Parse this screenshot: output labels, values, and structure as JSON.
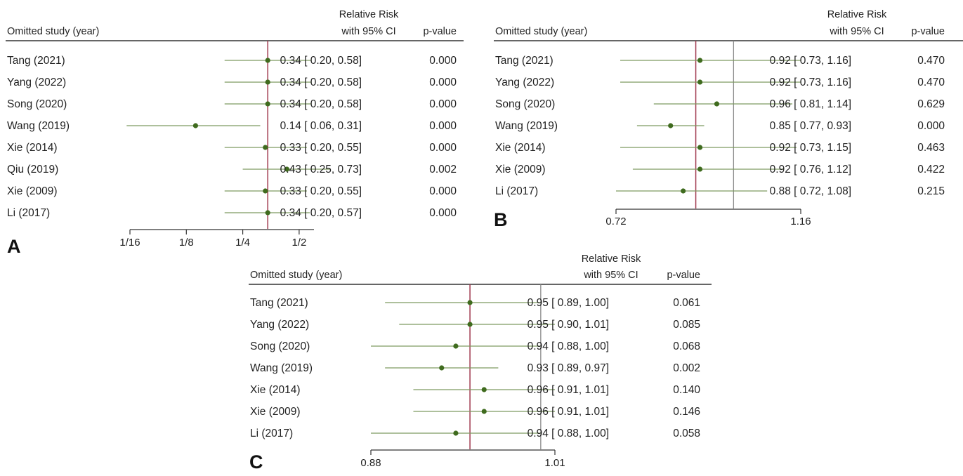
{
  "colors": {
    "ci_line": "#7d9a60",
    "point": "#3f6b1e",
    "null_line": "#a03a4f",
    "ref_line": "#8a8a8a",
    "text": "#222222"
  },
  "chart_data": [
    {
      "type": "forest",
      "panel_label": "A",
      "header": {
        "study": "Omitted study (year)",
        "effect_line1": "Relative Risk",
        "effect_line2": "with 95% CI",
        "pvalue": "p-value"
      },
      "x_scale": "log2",
      "xlim": [
        0.0625,
        0.6
      ],
      "ticks": [
        {
          "value": 0.0625,
          "label": "1/16"
        },
        {
          "value": 0.125,
          "label": "1/8"
        },
        {
          "value": 0.25,
          "label": "1/4"
        },
        {
          "value": 0.5,
          "label": "1/2"
        }
      ],
      "pooled_line": 0.34,
      "reference_line": null,
      "rows": [
        {
          "study": "Tang (2021)",
          "rr": 0.34,
          "lo": 0.2,
          "hi": 0.58,
          "text": "0.34 [ 0.20, 0.58]",
          "p": "0.000"
        },
        {
          "study": "Yang (2022)",
          "rr": 0.34,
          "lo": 0.2,
          "hi": 0.58,
          "text": "0.34 [ 0.20, 0.58]",
          "p": "0.000"
        },
        {
          "study": "Song (2020)",
          "rr": 0.34,
          "lo": 0.2,
          "hi": 0.58,
          "text": "0.34 [ 0.20, 0.58]",
          "p": "0.000"
        },
        {
          "study": "Wang (2019)",
          "rr": 0.14,
          "lo": 0.06,
          "hi": 0.31,
          "text": "0.14 [ 0.06, 0.31]",
          "p": "0.000"
        },
        {
          "study": "Xie (2014)",
          "rr": 0.33,
          "lo": 0.2,
          "hi": 0.55,
          "text": "0.33 [ 0.20, 0.55]",
          "p": "0.000"
        },
        {
          "study": "Qiu (2019)",
          "rr": 0.43,
          "lo": 0.25,
          "hi": 0.73,
          "text": "0.43 [ 0.25, 0.73]",
          "p": "0.002"
        },
        {
          "study": "Xie (2009)",
          "rr": 0.33,
          "lo": 0.2,
          "hi": 0.55,
          "text": "0.33 [ 0.20, 0.55]",
          "p": "0.000"
        },
        {
          "study": "Li (2017)",
          "rr": 0.34,
          "lo": 0.2,
          "hi": 0.57,
          "text": "0.34 [ 0.20, 0.57]",
          "p": "0.000"
        }
      ]
    },
    {
      "type": "forest",
      "panel_label": "B",
      "header": {
        "study": "Omitted study (year)",
        "effect_line1": "Relative Risk",
        "effect_line2": "with 95% CI",
        "pvalue": "p-value"
      },
      "x_scale": "linear",
      "xlim": [
        0.72,
        1.16
      ],
      "ticks": [
        {
          "value": 0.72,
          "label": "0.72"
        },
        {
          "value": 1.16,
          "label": "1.16"
        }
      ],
      "pooled_line": 0.91,
      "reference_line": 1.0,
      "rows": [
        {
          "study": "Tang (2021)",
          "rr": 0.92,
          "lo": 0.73,
          "hi": 1.16,
          "text": "0.92 [ 0.73,  1.16]",
          "p": "0.470"
        },
        {
          "study": "Yang (2022)",
          "rr": 0.92,
          "lo": 0.73,
          "hi": 1.16,
          "text": "0.92 [ 0.73,  1.16]",
          "p": "0.470"
        },
        {
          "study": "Song (2020)",
          "rr": 0.96,
          "lo": 0.81,
          "hi": 1.14,
          "text": "0.96 [ 0.81,  1.14]",
          "p": "0.629"
        },
        {
          "study": "Wang (2019)",
          "rr": 0.85,
          "lo": 0.77,
          "hi": 0.93,
          "text": "0.85 [ 0.77,  0.93]",
          "p": "0.000"
        },
        {
          "study": "Xie (2014)",
          "rr": 0.92,
          "lo": 0.73,
          "hi": 1.15,
          "text": "0.92 [ 0.73,  1.15]",
          "p": "0.463"
        },
        {
          "study": "Xie (2009)",
          "rr": 0.92,
          "lo": 0.76,
          "hi": 1.12,
          "text": "0.92 [ 0.76,  1.12]",
          "p": "0.422"
        },
        {
          "study": "Li (2017)",
          "rr": 0.88,
          "lo": 0.72,
          "hi": 1.08,
          "text": "0.88 [ 0.72,  1.08]",
          "p": "0.215"
        }
      ]
    },
    {
      "type": "forest",
      "panel_label": "C",
      "header": {
        "study": "Omitted study (year)",
        "effect_line1": "Relative Risk",
        "effect_line2": "with 95% CI",
        "pvalue": "p-value"
      },
      "x_scale": "linear",
      "xlim": [
        0.88,
        1.01
      ],
      "ticks": [
        {
          "value": 0.88,
          "label": "0.88"
        },
        {
          "value": 1.01,
          "label": "1.01"
        }
      ],
      "pooled_line": 0.95,
      "reference_line": 1.0,
      "rows": [
        {
          "study": "Tang (2021)",
          "rr": 0.95,
          "lo": 0.89,
          "hi": 1.0,
          "text": "0.95 [ 0.89,  1.00]",
          "p": "0.061"
        },
        {
          "study": "Yang (2022)",
          "rr": 0.95,
          "lo": 0.9,
          "hi": 1.01,
          "text": "0.95 [ 0.90,  1.01]",
          "p": "0.085"
        },
        {
          "study": "Song (2020)",
          "rr": 0.94,
          "lo": 0.88,
          "hi": 1.0,
          "text": "0.94 [ 0.88,  1.00]",
          "p": "0.068"
        },
        {
          "study": "Wang (2019)",
          "rr": 0.93,
          "lo": 0.89,
          "hi": 0.97,
          "text": "0.93 [ 0.89,  0.97]",
          "p": "0.002"
        },
        {
          "study": "Xie (2014)",
          "rr": 0.96,
          "lo": 0.91,
          "hi": 1.01,
          "text": "0.96 [ 0.91,  1.01]",
          "p": "0.140"
        },
        {
          "study": "Xie (2009)",
          "rr": 0.96,
          "lo": 0.91,
          "hi": 1.01,
          "text": "0.96 [ 0.91,  1.01]",
          "p": "0.146"
        },
        {
          "study": "Li (2017)",
          "rr": 0.94,
          "lo": 0.88,
          "hi": 1.0,
          "text": "0.94 [ 0.88,  1.00]",
          "p": "0.058"
        }
      ]
    }
  ]
}
